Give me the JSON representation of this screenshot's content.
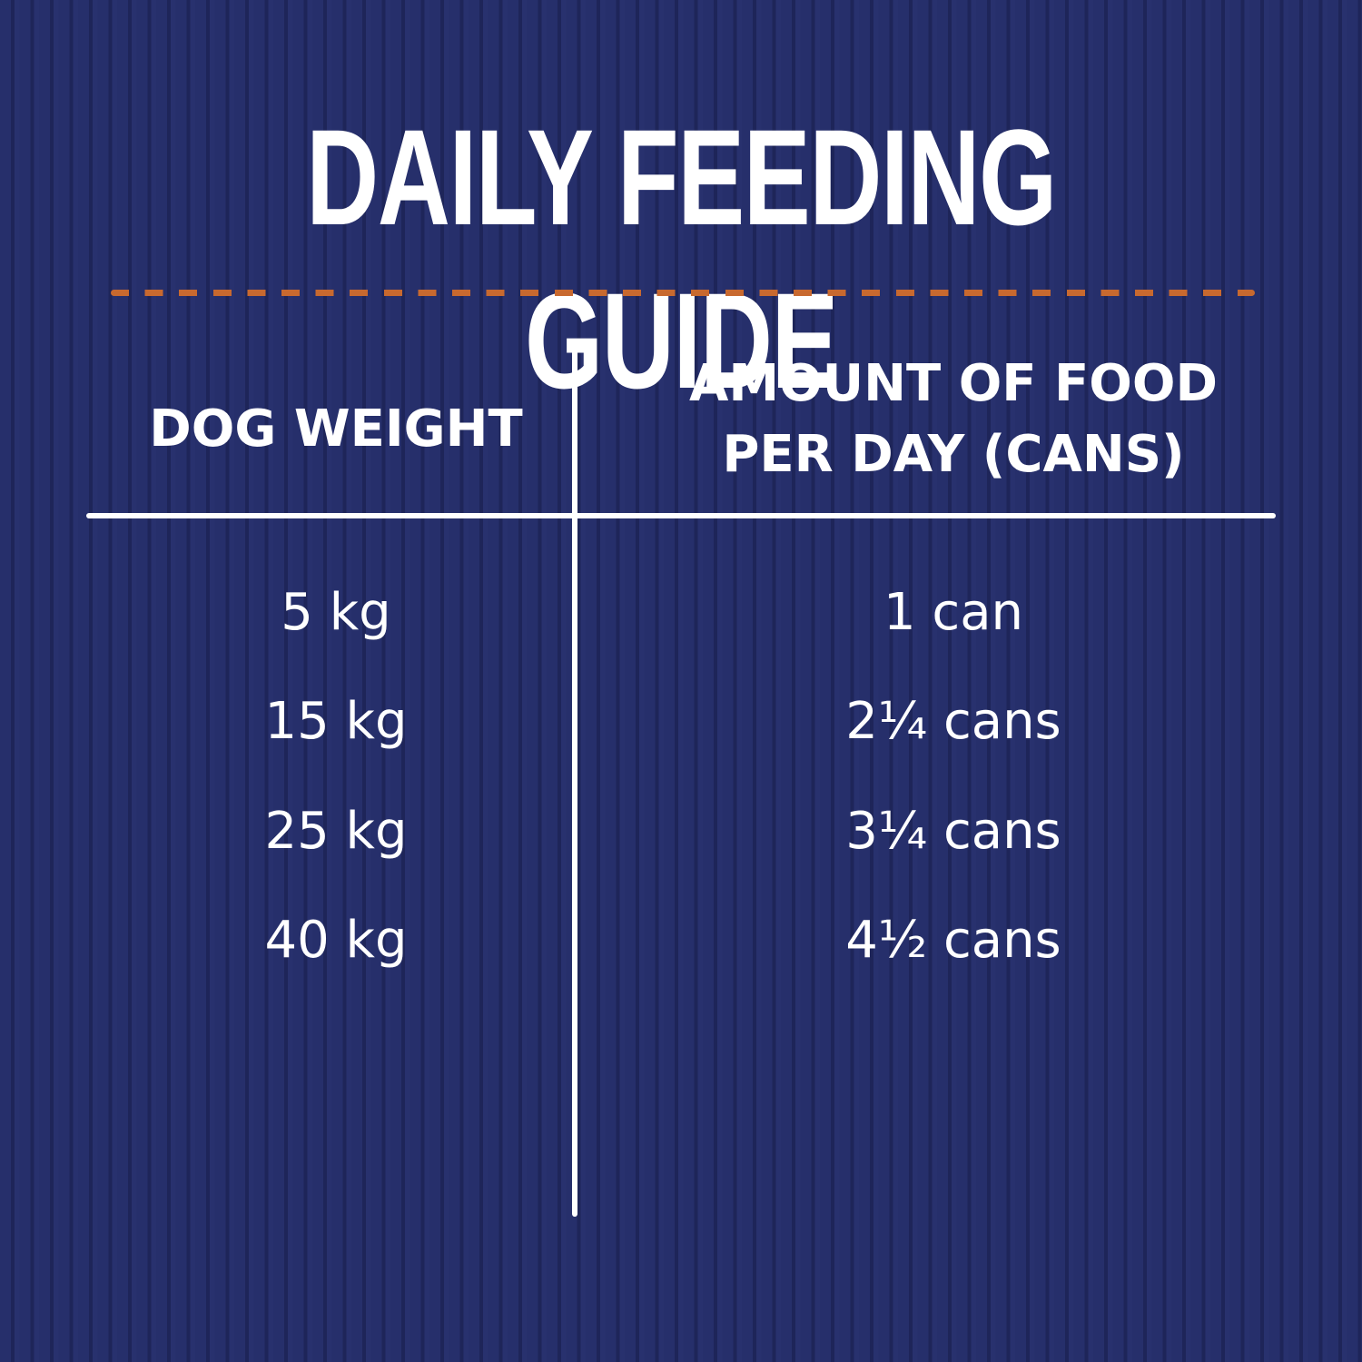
{
  "title": "DAILY FEEDING GUIDE",
  "colors": {
    "background": "#252d68",
    "divider_dashes": "#c8692f",
    "text": "#ffffff"
  },
  "table": {
    "headers": [
      "DOG WEIGHT",
      "AMOUNT OF FOOD PER DAY (CANS)"
    ],
    "rows": [
      [
        "5 kg",
        "1 can"
      ],
      [
        "15 kg",
        "2¼ cans"
      ],
      [
        "25 kg",
        "3¼ cans"
      ],
      [
        "40 kg",
        "4½ cans"
      ]
    ]
  }
}
